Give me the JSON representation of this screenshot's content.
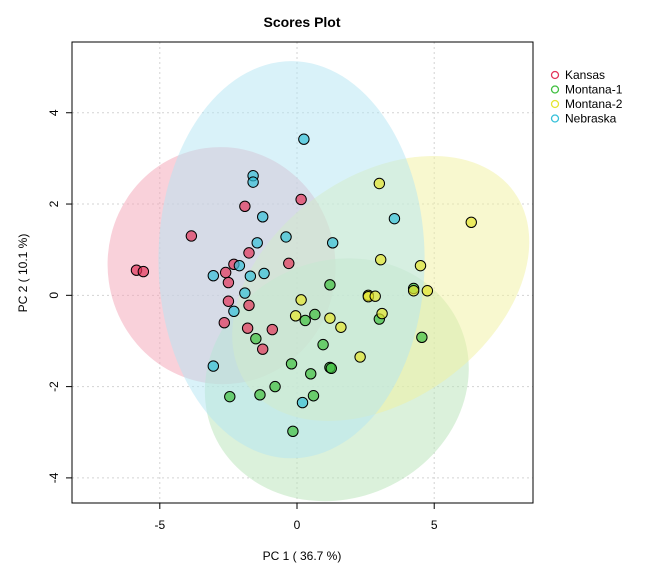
{
  "chart_data": {
    "type": "scatter",
    "title": "Scores Plot",
    "xlabel": "PC 1 ( 36.7 %)",
    "ylabel": "PC 2 ( 10.1 %)",
    "xlim": [
      -8.2,
      8.6
    ],
    "ylim": [
      -4.55,
      5.55
    ],
    "xticks": [
      -5,
      0,
      5
    ],
    "yticks": [
      -4,
      -2,
      0,
      2,
      4
    ],
    "grid": true,
    "legend_position": "top-right",
    "series": [
      {
        "name": "Kansas",
        "color": "#e3355a",
        "ellipse_fill": "#f4a3b6",
        "ellipse": {
          "cx": -2.75,
          "cy": 0.65,
          "rx": 4.15,
          "ry": 2.6,
          "angle": 8
        },
        "points": [
          [
            -5.85,
            0.55
          ],
          [
            -5.6,
            0.52
          ],
          [
            -3.85,
            1.3
          ],
          [
            -1.9,
            1.95
          ],
          [
            0.15,
            2.1
          ],
          [
            -1.75,
            0.93
          ],
          [
            -2.3,
            0.68
          ],
          [
            -2.6,
            0.5
          ],
          [
            -2.5,
            0.28
          ],
          [
            -0.3,
            0.7
          ],
          [
            -2.5,
            -0.13
          ],
          [
            -1.75,
            -0.22
          ],
          [
            -2.65,
            -0.6
          ],
          [
            -1.8,
            -0.72
          ],
          [
            -0.9,
            -0.75
          ],
          [
            -1.25,
            -1.18
          ]
        ]
      },
      {
        "name": "Montana-1",
        "color": "#3fbf3f",
        "ellipse_fill": "#b7e4b7",
        "ellipse": {
          "cx": 1.45,
          "cy": -1.85,
          "rx": 4.9,
          "ry": 2.6,
          "angle": 24
        },
        "points": [
          [
            1.2,
            0.23
          ],
          [
            0.3,
            -0.55
          ],
          [
            0.65,
            -0.42
          ],
          [
            -1.5,
            -0.95
          ],
          [
            0.95,
            -1.08
          ],
          [
            -0.2,
            -1.5
          ],
          [
            0.5,
            -1.72
          ],
          [
            1.2,
            -1.58
          ],
          [
            1.25,
            -1.6
          ],
          [
            -0.8,
            -2.0
          ],
          [
            -1.35,
            -2.18
          ],
          [
            -2.45,
            -2.22
          ],
          [
            0.6,
            -2.2
          ],
          [
            -0.15,
            -2.98
          ],
          [
            4.25,
            0.15
          ],
          [
            4.55,
            -0.92
          ],
          [
            3.0,
            -0.52
          ]
        ]
      },
      {
        "name": "Montana-2",
        "color": "#e5e52e",
        "ellipse_fill": "#f2f2a0",
        "ellipse": {
          "cx": 3.05,
          "cy": 0.15,
          "rx": 6.0,
          "ry": 2.45,
          "angle": 36
        },
        "points": [
          [
            3.0,
            2.45
          ],
          [
            6.35,
            1.6
          ],
          [
            3.05,
            0.78
          ],
          [
            4.5,
            0.65
          ],
          [
            2.6,
            0.0
          ],
          [
            2.6,
            -0.03
          ],
          [
            2.85,
            -0.02
          ],
          [
            4.25,
            0.1
          ],
          [
            4.75,
            0.1
          ],
          [
            0.15,
            -0.1
          ],
          [
            -0.05,
            -0.45
          ],
          [
            1.2,
            -0.5
          ],
          [
            1.6,
            -0.7
          ],
          [
            3.1,
            -0.4
          ],
          [
            2.3,
            -1.35
          ]
        ]
      },
      {
        "name": "Nebraska",
        "color": "#35c0d9",
        "ellipse_fill": "#b3e6f4",
        "ellipse": {
          "cx": -0.2,
          "cy": 0.78,
          "rx": 4.85,
          "ry": 4.35,
          "angle": 0
        },
        "points": [
          [
            0.25,
            3.42
          ],
          [
            -1.6,
            2.62
          ],
          [
            -1.6,
            2.48
          ],
          [
            -1.25,
            1.72
          ],
          [
            3.55,
            1.68
          ],
          [
            -0.4,
            1.28
          ],
          [
            1.3,
            1.15
          ],
          [
            -1.45,
            1.15
          ],
          [
            -2.1,
            0.65
          ],
          [
            -3.05,
            0.43
          ],
          [
            -1.2,
            0.48
          ],
          [
            -1.7,
            0.42
          ],
          [
            -1.9,
            0.05
          ],
          [
            -2.3,
            -0.35
          ],
          [
            -3.05,
            -1.55
          ],
          [
            0.2,
            -2.35
          ]
        ]
      }
    ]
  }
}
